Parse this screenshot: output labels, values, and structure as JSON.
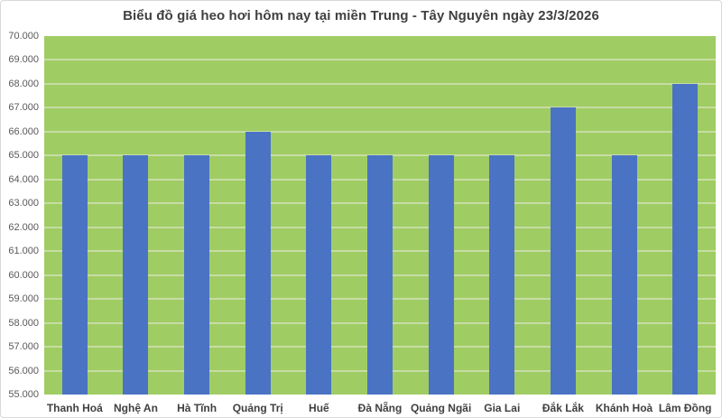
{
  "title": "Biểu đồ giá heo hơi hôm nay tại miền Trung - Tây Nguyên ngày 23/3/2026",
  "colors": {
    "bar": "#4A73C4",
    "plot_background": "#A0CC64",
    "gridline": "#C6DDA4",
    "title_text": "#404040",
    "axis_text": "#595959",
    "frame_border": "#D9D9D9"
  },
  "chart_data": {
    "type": "bar",
    "title": "Biểu đồ giá heo hơi hôm nay tại miền Trung - Tây Nguyên ngày 23/3/2026",
    "categories": [
      "Thanh Hoá",
      "Nghệ An",
      "Hà Tĩnh",
      "Quảng Trị",
      "Huế",
      "Đà Nẵng",
      "Quảng Ngãi",
      "Gia Lai",
      "Đắk Lắk",
      "Khánh Hoà",
      "Lâm Đồng"
    ],
    "values": [
      65000,
      65000,
      65000,
      66000,
      65000,
      65000,
      65000,
      65000,
      67000,
      65000,
      68000
    ],
    "xlabel": "",
    "ylabel": "",
    "ylim": [
      55000,
      70000
    ],
    "ytick_step": 1000,
    "yticks": [
      {
        "value": 55000,
        "label": "55.000"
      },
      {
        "value": 56000,
        "label": "56.000"
      },
      {
        "value": 57000,
        "label": "57.000"
      },
      {
        "value": 58000,
        "label": "58.000"
      },
      {
        "value": 59000,
        "label": "59.000"
      },
      {
        "value": 60000,
        "label": "60.000"
      },
      {
        "value": 61000,
        "label": "61.000"
      },
      {
        "value": 62000,
        "label": "62.000"
      },
      {
        "value": 63000,
        "label": "63.000"
      },
      {
        "value": 64000,
        "label": "64.000"
      },
      {
        "value": 65000,
        "label": "65.000"
      },
      {
        "value": 66000,
        "label": "66.000"
      },
      {
        "value": 67000,
        "label": "67.000"
      },
      {
        "value": 68000,
        "label": "68.000"
      },
      {
        "value": 69000,
        "label": "69.000"
      },
      {
        "value": 70000,
        "label": "70.000"
      }
    ],
    "grid": "horizontal",
    "legend": "none"
  }
}
